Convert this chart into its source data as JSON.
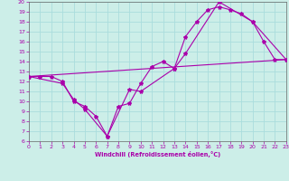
{
  "xlabel": "Windchill (Refroidissement éolien,°C)",
  "bg_color": "#cceee8",
  "grid_color": "#aadddd",
  "line_color": "#aa00aa",
  "xlim": [
    0,
    23
  ],
  "ylim": [
    6,
    20
  ],
  "xticks": [
    0,
    1,
    2,
    3,
    4,
    5,
    6,
    7,
    8,
    9,
    10,
    11,
    12,
    13,
    14,
    15,
    16,
    17,
    18,
    19,
    20,
    21,
    22,
    23
  ],
  "yticks": [
    6,
    7,
    8,
    9,
    10,
    11,
    12,
    13,
    14,
    15,
    16,
    17,
    18,
    19,
    20
  ],
  "line1_x": [
    0,
    1,
    2,
    3,
    4,
    5,
    6,
    7,
    8,
    9,
    10,
    11,
    12,
    13,
    14,
    15,
    16,
    17,
    18,
    19,
    20,
    21,
    22,
    23
  ],
  "line1_y": [
    12.5,
    12.5,
    12.5,
    12.0,
    10.0,
    9.5,
    8.5,
    6.5,
    9.5,
    9.8,
    11.8,
    13.5,
    14.0,
    13.3,
    16.5,
    18.0,
    19.2,
    19.5,
    19.2,
    18.8,
    18.0,
    16.0,
    14.2,
    14.2
  ],
  "line2_x": [
    0,
    3,
    4,
    5,
    7,
    9,
    10,
    13,
    14,
    17,
    20,
    23
  ],
  "line2_y": [
    12.5,
    11.8,
    10.2,
    9.2,
    6.5,
    11.2,
    11.0,
    13.3,
    14.8,
    20.0,
    18.0,
    14.2
  ],
  "line3_x": [
    0,
    23
  ],
  "line3_y": [
    12.5,
    14.2
  ]
}
